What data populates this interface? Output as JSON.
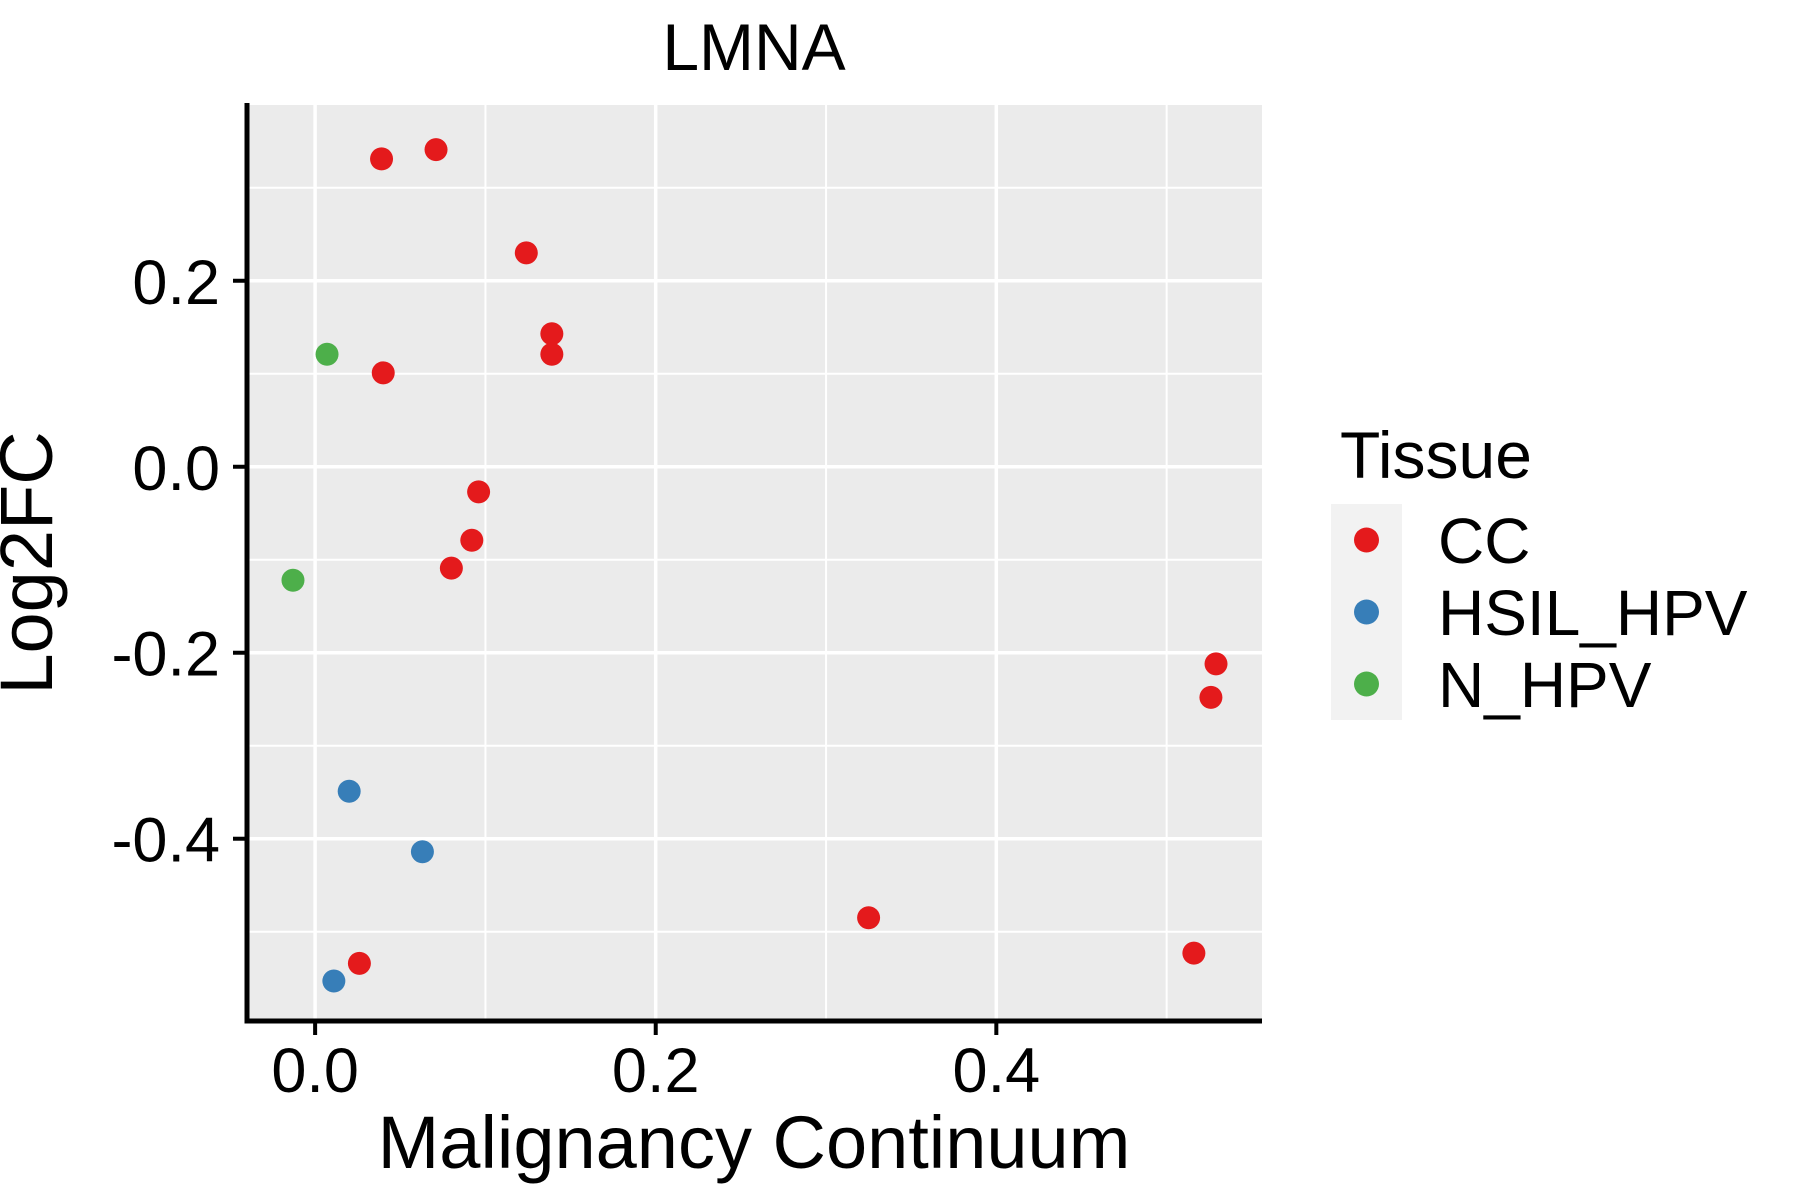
{
  "title": "LMNA",
  "axes": {
    "x": {
      "label": "Malignancy Continuum",
      "ticks": [
        0.0,
        0.2,
        0.4
      ],
      "tick_labels": [
        "0.0",
        "0.2",
        "0.4"
      ],
      "minor_ticks": [
        0.1,
        0.3,
        0.5
      ]
    },
    "y": {
      "label": "Log2FC",
      "ticks": [
        0.2,
        0.0,
        -0.2,
        -0.4
      ],
      "tick_labels": [
        "0.2",
        "0.0",
        "-0.2",
        "-0.4"
      ],
      "minor_ticks": [
        0.3,
        0.1,
        -0.1,
        -0.3,
        -0.5
      ]
    }
  },
  "legend": {
    "title": "Tissue",
    "entries": [
      {
        "label": "CC",
        "color": "#E41A1C"
      },
      {
        "label": "HSIL_HPV",
        "color": "#377EB8"
      },
      {
        "label": "N_HPV",
        "color": "#4DAF4A"
      }
    ]
  },
  "style": {
    "panel_bg": "#EBEBEB",
    "grid_color": "#FFFFFF",
    "legend_key_bg": "#F2F2F2",
    "spine_color": "#000000",
    "tick_color": "#000000"
  },
  "chart_data": {
    "type": "scatter",
    "title": "LMNA",
    "xlabel": "Malignancy Continuum",
    "ylabel": "Log2FC",
    "xlim": [
      -0.04,
      0.556
    ],
    "ylim": [
      -0.596,
      0.389
    ],
    "grid": "on",
    "legend_position": "right",
    "series": [
      {
        "name": "CC",
        "color": "#E41A1C",
        "points": [
          [
            0.039,
            0.331
          ],
          [
            0.071,
            0.341
          ],
          [
            0.124,
            0.23
          ],
          [
            0.139,
            0.143
          ],
          [
            0.139,
            0.121
          ],
          [
            0.04,
            0.101
          ],
          [
            0.096,
            -0.027
          ],
          [
            0.092,
            -0.079
          ],
          [
            0.08,
            -0.109
          ],
          [
            0.529,
            -0.212
          ],
          [
            0.526,
            -0.248
          ],
          [
            0.325,
            -0.485
          ],
          [
            0.516,
            -0.523
          ],
          [
            0.026,
            -0.534
          ]
        ]
      },
      {
        "name": "HSIL_HPV",
        "color": "#377EB8",
        "points": [
          [
            0.02,
            -0.349
          ],
          [
            0.063,
            -0.414
          ],
          [
            0.011,
            -0.553
          ]
        ]
      },
      {
        "name": "N_HPV",
        "color": "#4DAF4A",
        "points": [
          [
            0.007,
            0.121
          ],
          [
            -0.013,
            -0.122
          ]
        ]
      }
    ]
  }
}
